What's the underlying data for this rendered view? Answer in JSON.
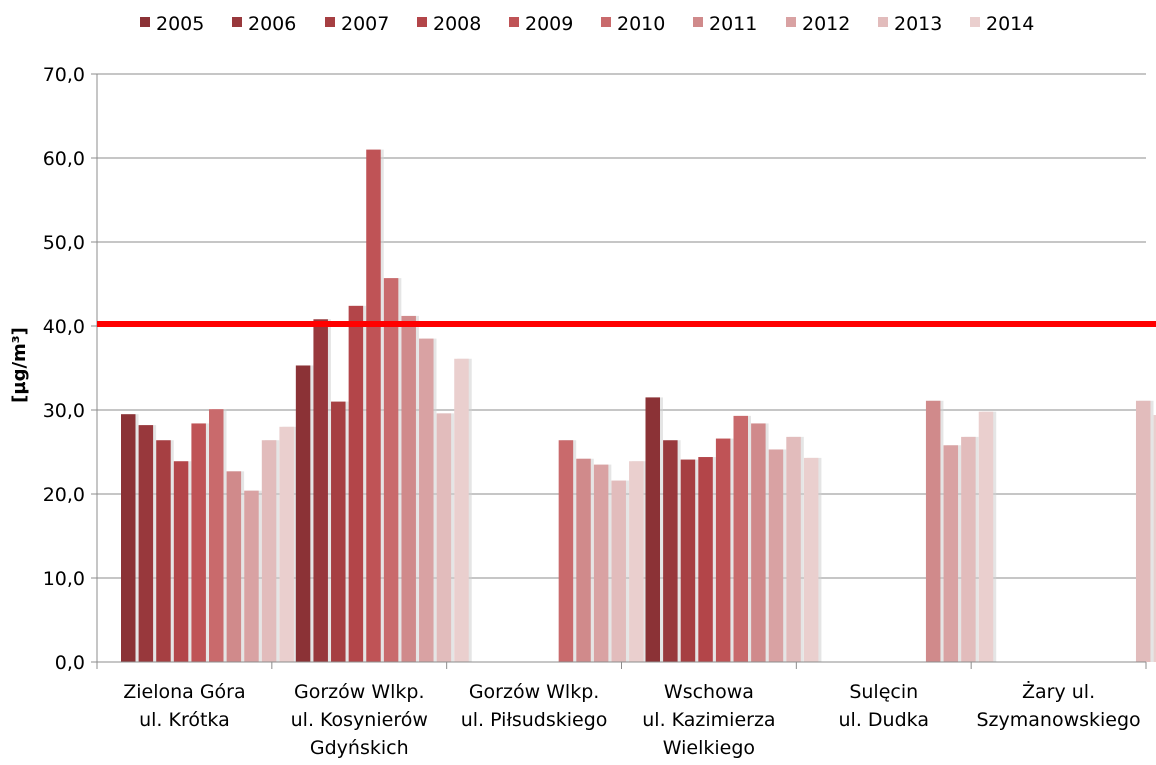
{
  "chart_data": {
    "type": "bar",
    "ylabel": "[µg/m³]",
    "ylim": [
      0,
      70
    ],
    "yticks": [
      "0,0",
      "10,0",
      "20,0",
      "30,0",
      "40,0",
      "50,0",
      "60,0",
      "70,0"
    ],
    "reference_line": {
      "value": 40,
      "color": "#ff0000"
    },
    "grid": "horizontal",
    "legend_position": "top",
    "categories": [
      [
        "Zielona Góra",
        "ul. Krótka"
      ],
      [
        "Gorzów Wlkp.",
        "ul. Kosynierów",
        "Gdyńskich"
      ],
      [
        "Gorzów Wlkp.",
        "ul. Piłsudskiego"
      ],
      [
        "Wschowa",
        "ul. Kazimierza",
        "Wielkiego"
      ],
      [
        "Sulęcin",
        "ul. Dudka"
      ],
      [
        "Żary ul.",
        "Szymanowskiego"
      ]
    ],
    "series": [
      {
        "name": "2005",
        "color": "#8b3236",
        "values": [
          29.5,
          35.3,
          null,
          31.5,
          null,
          null
        ]
      },
      {
        "name": "2006",
        "color": "#98383c",
        "values": [
          28.2,
          40.8,
          null,
          26.4,
          null,
          null
        ]
      },
      {
        "name": "2007",
        "color": "#a63f42",
        "values": [
          26.4,
          31.0,
          null,
          24.1,
          null,
          null
        ]
      },
      {
        "name": "2008",
        "color": "#b34549",
        "values": [
          23.9,
          42.4,
          null,
          24.4,
          null,
          null
        ]
      },
      {
        "name": "2009",
        "color": "#bf5356",
        "values": [
          28.4,
          61.0,
          null,
          26.6,
          null,
          null
        ]
      },
      {
        "name": "2010",
        "color": "#c96a6c",
        "values": [
          30.1,
          45.7,
          26.4,
          29.3,
          null,
          null
        ]
      },
      {
        "name": "2011",
        "color": "#d08a8b",
        "values": [
          22.7,
          41.2,
          24.2,
          28.4,
          31.1,
          null
        ]
      },
      {
        "name": "2012",
        "color": "#d9a2a3",
        "values": [
          20.4,
          38.5,
          23.5,
          25.3,
          25.8,
          null
        ]
      },
      {
        "name": "2013",
        "color": "#e2bcbc",
        "values": [
          26.4,
          29.6,
          21.6,
          26.8,
          26.8,
          31.1
        ]
      },
      {
        "name": "2014",
        "color": "#eacfce",
        "values": [
          28.0,
          36.1,
          23.9,
          24.3,
          29.8,
          29.4
        ]
      }
    ]
  }
}
